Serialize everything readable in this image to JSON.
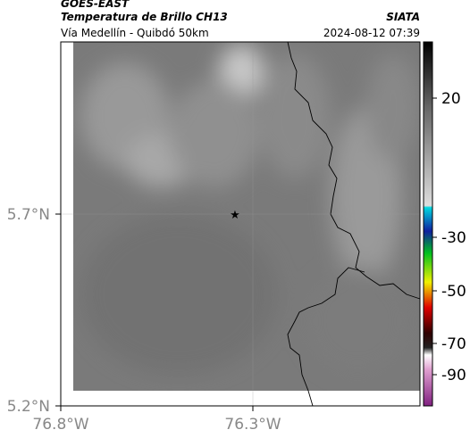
{
  "header": {
    "product": "GOES-EAST",
    "title": "Temperatura de Brillo CH13",
    "source": "SIATA",
    "subtitle": "Vía Medellín - Quibdó 50km",
    "datetime": "2024-08-12 07:39"
  },
  "map": {
    "lat_labels": [
      "5.7°N",
      "5.2°N"
    ],
    "lon_labels": [
      "76.8°W",
      "76.3°W"
    ]
  },
  "colorbar": {
    "ticks": [
      20,
      -30,
      -50,
      -70,
      -90
    ]
  }
}
